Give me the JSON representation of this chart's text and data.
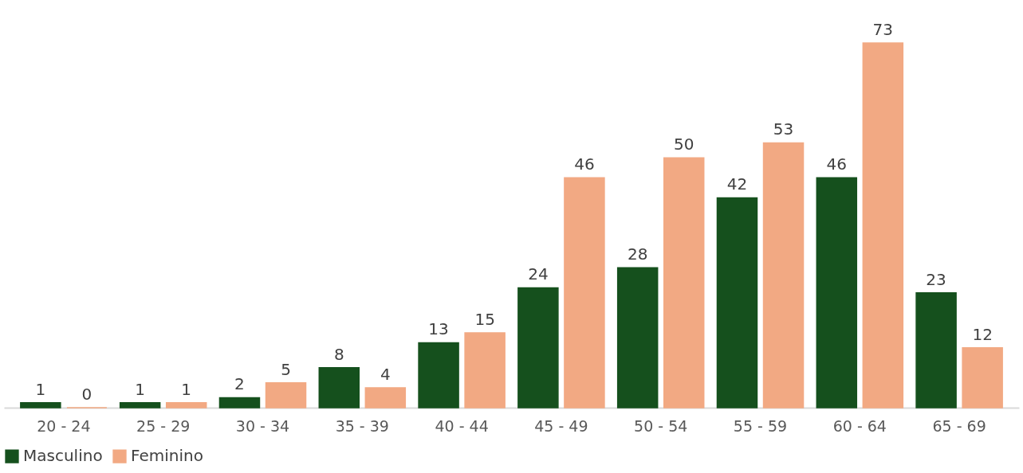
{
  "chart_data": {
    "type": "bar",
    "categories": [
      "20 - 24",
      "25 - 29",
      "30 - 34",
      "35 - 39",
      "40 - 44",
      "45 - 49",
      "50 - 54",
      "55 - 59",
      "60 - 64",
      "65 - 69"
    ],
    "series": [
      {
        "name": "Masculino",
        "color": "#15501d",
        "values": [
          1,
          1,
          2,
          8,
          13,
          24,
          28,
          42,
          46,
          23
        ]
      },
      {
        "name": "Feminino",
        "color": "#f2a983",
        "values": [
          0,
          1,
          5,
          4,
          15,
          46,
          50,
          53,
          73,
          12
        ]
      }
    ],
    "data_labels": true,
    "legend": "bottom",
    "grid": false,
    "tick_labels": "x"
  }
}
